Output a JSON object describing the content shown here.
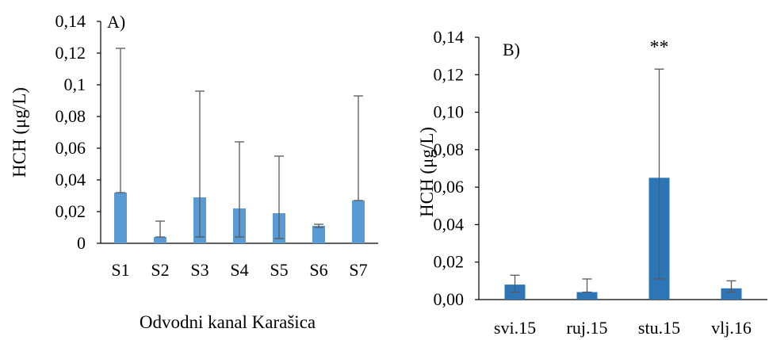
{
  "chart_data": [
    {
      "type": "bar",
      "panel_label": "A)",
      "categories": [
        "S1",
        "S2",
        "S3",
        "S4",
        "S5",
        "S6",
        "S7"
      ],
      "values": [
        0.032,
        0.004,
        0.029,
        0.022,
        0.019,
        0.011,
        0.027
      ],
      "error_low": [
        0.032,
        0.004,
        0.004,
        0.004,
        0.003,
        0.01,
        0.027
      ],
      "error_high": [
        0.123,
        0.014,
        0.096,
        0.064,
        0.055,
        0.012,
        0.093
      ],
      "ylim": [
        0,
        0.14
      ],
      "yticks": [
        0,
        0.02,
        0.04,
        0.06,
        0.08,
        0.1,
        0.12,
        0.14
      ],
      "ytick_labels": [
        "0",
        "0,02",
        "0,04",
        "0,06",
        "0,08",
        "0,1",
        "0,12",
        "0,14"
      ],
      "ylabel": "HCH (μg/L)",
      "xlabel": "Odvodni kanal Karašica",
      "bar_color": "#5b9bd5",
      "grid": false
    },
    {
      "type": "bar",
      "panel_label": "B)",
      "categories": [
        "svi.15",
        "ruj.15",
        "stu.15",
        "vlj.16"
      ],
      "values": [
        0.008,
        0.004,
        0.065,
        0.006
      ],
      "error_low": [
        0.004,
        0.004,
        0.011,
        0.004
      ],
      "error_high": [
        0.013,
        0.011,
        0.123,
        0.01
      ],
      "ylim": [
        0,
        0.14
      ],
      "yticks": [
        0,
        0.02,
        0.04,
        0.06,
        0.08,
        0.1,
        0.12,
        0.14
      ],
      "ytick_labels": [
        "0,00",
        "0,02",
        "0,04",
        "0,06",
        "0,08",
        "0,10",
        "0,12",
        "0,14"
      ],
      "ylabel": "HCH (μg/L)",
      "xlabel": "",
      "annotations": [
        {
          "category": "stu.15",
          "text": "**"
        }
      ],
      "bar_color": "#2e75b6",
      "grid": false
    }
  ]
}
